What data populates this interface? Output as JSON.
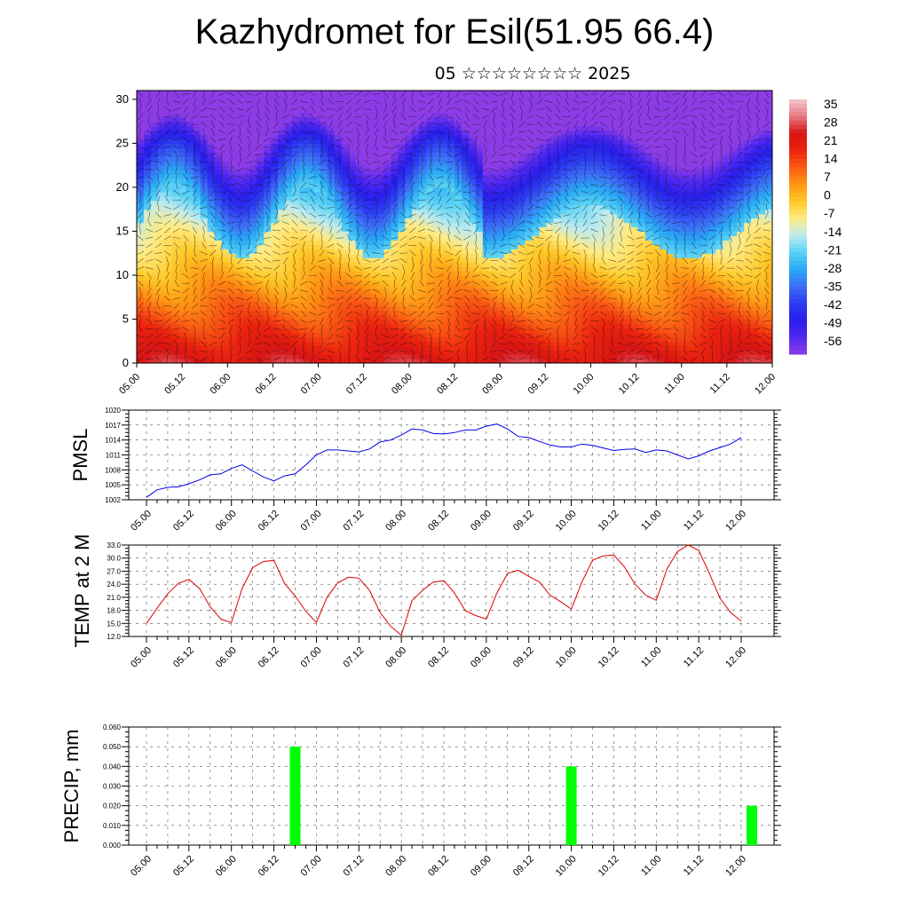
{
  "title": "Kazhydromet for Esil(51.95 66.4)",
  "subtitle": "05 ☆☆☆☆☆☆☆☆ 2025",
  "time_labels": [
    "05.00",
    "05.12",
    "06.00",
    "06.12",
    "07.00",
    "07.12",
    "08.00",
    "08.12",
    "09.00",
    "09.12",
    "10.00",
    "10.12",
    "11.00",
    "11.12",
    "12.00"
  ],
  "colors": {
    "pmsl_line": "#0000ee",
    "temp_line": "#dd0000",
    "precip_bar": "#00ff00",
    "grid": "#555555"
  },
  "chart_data": [
    {
      "type": "heatmap",
      "name": "cross-section",
      "xlabel": "",
      "ylabel": "",
      "y_ticks": [
        0,
        5,
        10,
        15,
        20,
        25,
        30
      ],
      "ylim": [
        0,
        31
      ],
      "colorbar_labels": [
        "35",
        "28",
        "21",
        "14",
        "7",
        "0",
        "-7",
        "-14",
        "-21",
        "-28",
        "-35",
        "-42",
        "-49",
        "-56"
      ],
      "colorbar_range": [
        -63,
        42
      ]
    },
    {
      "type": "line",
      "name": "pmsl",
      "ylabel": "PMSL",
      "ylim": [
        1002,
        1020
      ],
      "y_ticks": [
        "1002",
        "1005",
        "1008",
        "1011",
        "1014",
        "1017",
        "1020"
      ],
      "grid": true,
      "values": [
        1002.5,
        1004.0,
        1004.5,
        1004.6,
        1005.2,
        1006.0,
        1007.0,
        1007.2,
        1008.3,
        1009.0,
        1007.8,
        1006.6,
        1005.8,
        1006.8,
        1007.2,
        1009.0,
        1011.0,
        1012.0,
        1012.0,
        1011.8,
        1011.6,
        1012.2,
        1013.6,
        1014.0,
        1015.0,
        1016.2,
        1016.0,
        1015.3,
        1015.2,
        1015.5,
        1016.0,
        1016.0,
        1016.8,
        1017.2,
        1016.2,
        1014.7,
        1014.5,
        1013.7,
        1013.0,
        1012.6,
        1012.6,
        1013.2,
        1012.9,
        1012.4,
        1011.9,
        1012.1,
        1012.2,
        1011.5,
        1012.0,
        1011.8,
        1011.0,
        1010.2,
        1010.8,
        1011.8,
        1012.5,
        1013.2,
        1014.5
      ]
    },
    {
      "type": "line",
      "name": "temp2m",
      "ylabel": "TEMP at 2 M",
      "ylim": [
        12,
        33
      ],
      "y_ticks": [
        "12.0",
        "15.0",
        "18.0",
        "21.0",
        "24.0",
        "27.0",
        "30.0",
        "33.0"
      ],
      "grid": true,
      "values": [
        15.0,
        18.5,
        21.8,
        24.2,
        25.1,
        23.0,
        18.8,
        16.0,
        15.2,
        23.0,
        27.8,
        29.2,
        29.5,
        24.2,
        21.3,
        17.8,
        15.2,
        21.0,
        24.3,
        25.6,
        25.4,
        22.6,
        17.5,
        14.3,
        12.3,
        20.2,
        22.6,
        24.5,
        24.8,
        22.0,
        18.0,
        16.8,
        16.0,
        22.0,
        26.5,
        27.2,
        25.8,
        24.5,
        21.5,
        20.0,
        18.3,
        24.5,
        29.5,
        30.5,
        30.7,
        28.0,
        24.0,
        21.5,
        20.3,
        27.5,
        31.5,
        33.0,
        31.8,
        26.5,
        20.8,
        17.5,
        15.5
      ]
    },
    {
      "type": "bar",
      "name": "precip",
      "ylabel": "PRECIP, mm",
      "ylim": [
        0,
        0.06
      ],
      "y_ticks": [
        "0.000",
        "0.010",
        "0.020",
        "0.030",
        "0.040",
        "0.050",
        "0.060"
      ],
      "grid": true,
      "bars": [
        {
          "step": 14,
          "value": 0.05
        },
        {
          "step": 40,
          "value": 0.04
        },
        {
          "step": 57,
          "value": 0.02
        }
      ]
    }
  ]
}
